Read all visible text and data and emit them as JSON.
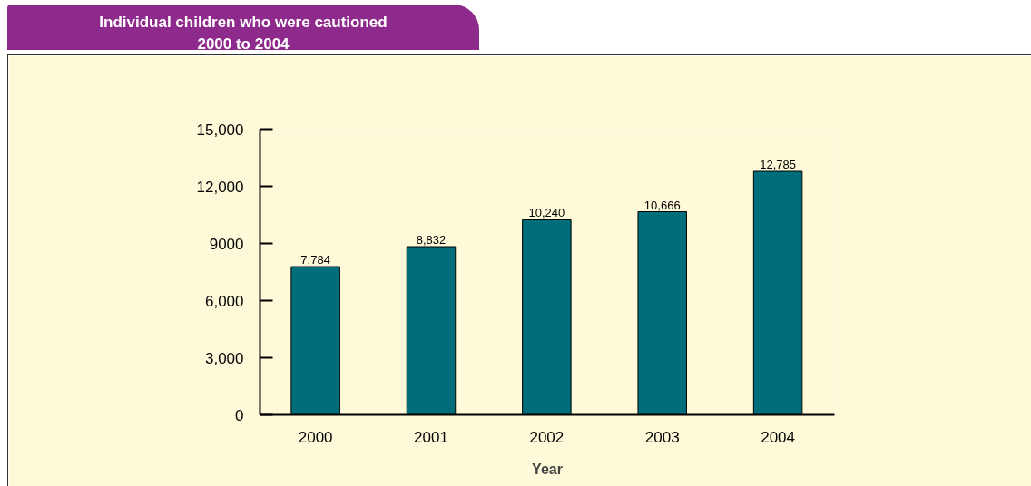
{
  "chart_data": {
    "type": "bar",
    "title": "Individual children who were cautioned\n2000 to 2004",
    "categories": [
      "2000",
      "2001",
      "2002",
      "2003",
      "2004"
    ],
    "values": [
      7784,
      8832,
      10240,
      10666,
      12785
    ],
    "value_labels": [
      "7,784",
      "8,832",
      "10,240",
      "10,666",
      "12,785"
    ],
    "color": "#006e7a",
    "xlabel": "Year",
    "ylim": [
      0,
      15000
    ],
    "yticks": [
      0,
      {
        "value": 3000,
        "label": "3,000"
      },
      {
        "value": 6000,
        "label": "6,000"
      },
      9000,
      {
        "value": 12000,
        "label": "12,000"
      },
      {
        "value": 15000,
        "label": "15,000"
      }
    ]
  }
}
